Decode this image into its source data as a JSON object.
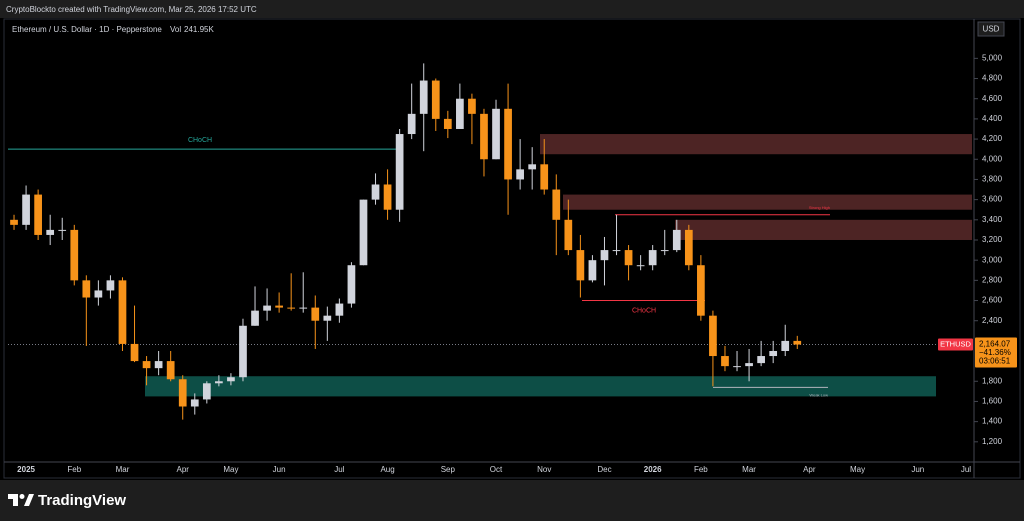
{
  "header": {
    "caption": "CryptoBlockto created with TradingView.com, Mar 25, 2026 17:52 UTC"
  },
  "footer": {
    "brand": "TradingView"
  },
  "chart_data": {
    "type": "candlestick",
    "title": "Ethereum / U.S. Dollar · 1D · Pepperstone",
    "volume_prefix": "Vol",
    "volume": {
      "value": 241950,
      "label": "241.95K"
    },
    "y_unit": "USD",
    "categories": [
      null,
      "2025",
      null,
      null,
      null,
      "Feb",
      null,
      null,
      null,
      "Mar",
      null,
      null,
      null,
      null,
      "Apr",
      null,
      null,
      null,
      "May",
      null,
      null,
      null,
      "Jun",
      null,
      null,
      null,
      null,
      "Jul",
      null,
      null,
      null,
      "Aug",
      null,
      null,
      null,
      null,
      "Sep",
      null,
      null,
      null,
      "Oct",
      null,
      null,
      null,
      "Nov",
      null,
      null,
      null,
      null,
      "Dec",
      null,
      null,
      null,
      "2026",
      null,
      null,
      null,
      "Feb",
      null,
      null,
      null,
      "Mar",
      null,
      null,
      null,
      null,
      "Apr",
      null,
      null,
      null,
      "May",
      null,
      null,
      null,
      null,
      "Jun",
      null,
      null,
      null,
      "Jul"
    ],
    "series": [
      {
        "name": "ETHUSD",
        "up_color": "#d1d4dc",
        "down_color": "#f7931a",
        "open": [
          3400,
          3350,
          3650,
          3250,
          3300,
          3300,
          2800,
          2630,
          2700,
          2800,
          2170,
          2000,
          1930,
          2000,
          1820,
          1550,
          1620,
          1780,
          1800,
          1840,
          2350,
          2500,
          2550,
          2530,
          2520,
          2530,
          2400,
          2450,
          2570,
          2950,
          3600,
          3750,
          3500,
          4250,
          4450,
          4780,
          4400,
          4300,
          4600,
          4450,
          4000,
          4500,
          3800,
          3900,
          3950,
          3700,
          3400,
          3100,
          2800,
          3000,
          3100,
          3100,
          2950,
          2950,
          3100,
          3100,
          3300,
          2950,
          2450,
          2050,
          1950,
          1950,
          1980,
          2050,
          2100,
          2200,
          null,
          null,
          null,
          null,
          null,
          null,
          null,
          null,
          null,
          null,
          null,
          null,
          null,
          null
        ],
        "high": [
          3450,
          3740,
          3700,
          3450,
          3420,
          3350,
          2850,
          2800,
          2850,
          2830,
          2550,
          2050,
          2100,
          2100,
          1860,
          1680,
          1800,
          1860,
          1880,
          2420,
          2740,
          2720,
          2680,
          2870,
          2880,
          2650,
          2540,
          2620,
          2980,
          3600,
          3860,
          3900,
          4300,
          4750,
          4950,
          4800,
          4480,
          4750,
          4650,
          4500,
          4590,
          4750,
          4200,
          4120,
          4200,
          3850,
          3600,
          3250,
          3050,
          3230,
          3450,
          3150,
          3050,
          3150,
          3300,
          3400,
          3350,
          3050,
          2500,
          2150,
          2100,
          2120,
          2200,
          2200,
          2360,
          2250,
          null,
          null,
          null,
          null,
          null,
          null,
          null,
          null,
          null,
          null,
          null,
          null,
          null,
          null
        ],
        "low": [
          3300,
          3300,
          3200,
          3150,
          3200,
          2750,
          2150,
          2550,
          2620,
          2100,
          1990,
          1760,
          1860,
          1800,
          1420,
          1470,
          1580,
          1750,
          1760,
          1800,
          2350,
          2400,
          2480,
          2500,
          2480,
          2120,
          2200,
          2380,
          2530,
          2950,
          3550,
          3400,
          3380,
          4200,
          4080,
          4280,
          4210,
          4300,
          4150,
          3830,
          4000,
          3450,
          3700,
          3700,
          3650,
          3050,
          3050,
          2630,
          2780,
          2750,
          3050,
          2800,
          2900,
          2900,
          3050,
          3080,
          2900,
          2400,
          1750,
          1900,
          1900,
          1800,
          1950,
          1980,
          2050,
          2120,
          null,
          null,
          null,
          null,
          null,
          null,
          null,
          null,
          null,
          null,
          null,
          null,
          null,
          null
        ],
        "close": [
          3350,
          3650,
          3250,
          3300,
          3300,
          2800,
          2630,
          2700,
          2800,
          2170,
          2000,
          1930,
          2000,
          1820,
          1550,
          1620,
          1780,
          1800,
          1840,
          2350,
          2500,
          2550,
          2530,
          2520,
          2530,
          2400,
          2450,
          2570,
          2950,
          3600,
          3750,
          3500,
          4250,
          4450,
          4780,
          4400,
          4300,
          4600,
          4450,
          4000,
          4500,
          3800,
          3900,
          3950,
          3700,
          3400,
          3100,
          2800,
          3000,
          3100,
          3100,
          2950,
          2950,
          3100,
          3100,
          3300,
          2950,
          2450,
          2050,
          1950,
          1950,
          1980,
          2050,
          2100,
          2200,
          2164,
          null,
          null,
          null,
          null,
          null,
          null,
          null,
          null,
          null,
          null,
          null,
          null,
          null,
          null
        ]
      }
    ],
    "ylim": [
      1000,
      5380
    ],
    "yticks": [
      {
        "value": 1200,
        "label": "1,200"
      },
      {
        "value": 1400,
        "label": "1,400"
      },
      {
        "value": 1600,
        "label": "1,600"
      },
      {
        "value": 1800,
        "label": "1,800"
      },
      {
        "value": 2400,
        "label": "2,400"
      },
      {
        "value": 2600,
        "label": "2,600"
      },
      {
        "value": 2800,
        "label": "2,800"
      },
      {
        "value": 3000,
        "label": "3,000"
      },
      {
        "value": 3200,
        "label": "3,200"
      },
      {
        "value": 3400,
        "label": "3,400"
      },
      {
        "value": 3600,
        "label": "3,600"
      },
      {
        "value": 3800,
        "label": "3,800"
      },
      {
        "value": 4000,
        "label": "4,000"
      },
      {
        "value": 4200,
        "label": "4,200"
      },
      {
        "value": 4400,
        "label": "4,400"
      },
      {
        "value": 4600,
        "label": "4,600"
      },
      {
        "value": 4800,
        "label": "4,800"
      },
      {
        "value": 5000,
        "label": "5,000"
      }
    ],
    "grid": false,
    "zones": [
      {
        "low": 4050,
        "high": 4250,
        "color": "#5a2a2a"
      },
      {
        "low": 3500,
        "high": 3650,
        "color": "#5a2a2a"
      },
      {
        "low": 3200,
        "high": 3400,
        "color": "#5a2a2a"
      },
      {
        "low": 1650,
        "high": 1850,
        "color": "#0f5c52"
      }
    ],
    "levels": [
      {
        "value": 4100,
        "label": "CHoCH",
        "color": "#26a69a"
      },
      {
        "value": 3450,
        "label": "Strong High",
        "color": "#f23645"
      },
      {
        "value": 2600,
        "label": "CHoCH",
        "color": "#f23645"
      },
      {
        "value": 1740,
        "label": "Weak Low",
        "color": "#b2b5be"
      }
    ],
    "last_price": {
      "value": 2164.07,
      "label": "2,164.07"
    },
    "change": {
      "value": -41.36,
      "label": "−41.36%"
    },
    "countdown": "03:06:51"
  }
}
